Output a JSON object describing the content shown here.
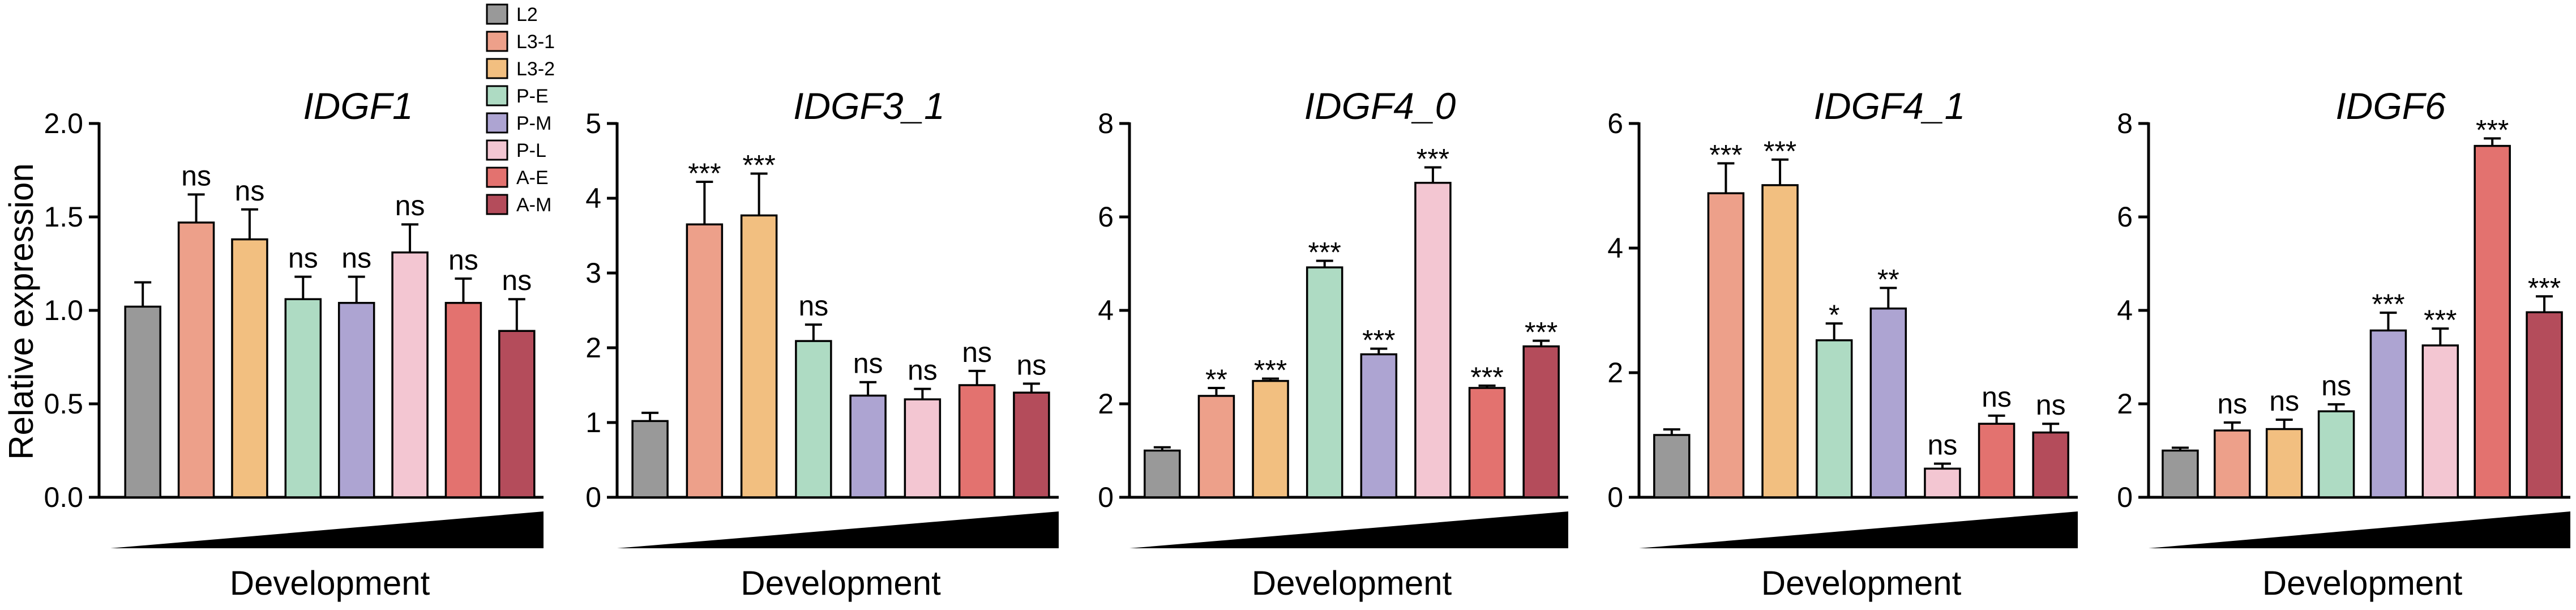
{
  "chart_data": [
    {
      "type": "bar",
      "title": "IDGF1",
      "xlabel": "Development",
      "ylabel": "Relative expression",
      "ylim": [
        0,
        2.0
      ],
      "yticks": [
        "0.0",
        "0.5",
        "1.0",
        "1.5",
        "2.0"
      ],
      "tick_values": [
        0,
        0.5,
        1.0,
        1.5,
        2.0
      ],
      "categories": [
        "L2",
        "L3-1",
        "L3-2",
        "P-E",
        "P-M",
        "P-L",
        "A-E",
        "A-M"
      ],
      "values": [
        1.02,
        1.47,
        1.38,
        1.06,
        1.04,
        1.31,
        1.04,
        0.89
      ],
      "errors": [
        0.13,
        0.15,
        0.16,
        0.12,
        0.14,
        0.15,
        0.13,
        0.17
      ],
      "significance": [
        "",
        "ns",
        "ns",
        "ns",
        "ns",
        "ns",
        "ns",
        "ns"
      ]
    },
    {
      "type": "bar",
      "title": "IDGF3_1",
      "xlabel": "Development",
      "ylabel": "",
      "ylim": [
        0,
        5
      ],
      "yticks": [
        "0",
        "1",
        "2",
        "3",
        "4",
        "5"
      ],
      "tick_values": [
        0,
        1,
        2,
        3,
        4,
        5
      ],
      "categories": [
        "L2",
        "L3-1",
        "L3-2",
        "P-E",
        "P-M",
        "P-L",
        "A-E",
        "A-M"
      ],
      "values": [
        1.02,
        3.65,
        3.77,
        2.09,
        1.36,
        1.31,
        1.5,
        1.4
      ],
      "errors": [
        0.11,
        0.57,
        0.56,
        0.22,
        0.18,
        0.14,
        0.19,
        0.12
      ],
      "significance": [
        "",
        "***",
        "***",
        "ns",
        "ns",
        "ns",
        "ns",
        "ns"
      ]
    },
    {
      "type": "bar",
      "title": "IDGF4_0",
      "xlabel": "Development",
      "ylabel": "",
      "ylim": [
        0,
        8
      ],
      "yticks": [
        "0",
        "2",
        "4",
        "6",
        "8"
      ],
      "tick_values": [
        0,
        2,
        4,
        6,
        8
      ],
      "categories": [
        "L2",
        "L3-1",
        "L3-2",
        "P-E",
        "P-M",
        "P-L",
        "A-E",
        "A-M"
      ],
      "values": [
        1.0,
        2.17,
        2.49,
        4.92,
        3.06,
        6.73,
        2.34,
        3.23
      ],
      "errors": [
        0.07,
        0.17,
        0.05,
        0.14,
        0.12,
        0.33,
        0.05,
        0.12
      ],
      "significance": [
        "",
        "**",
        "***",
        "***",
        "***",
        "***",
        "***",
        "***"
      ]
    },
    {
      "type": "bar",
      "title": "IDGF4_1",
      "xlabel": "Development",
      "ylabel": "",
      "ylim": [
        0,
        6
      ],
      "yticks": [
        "0",
        "2",
        "4",
        "6"
      ],
      "tick_values": [
        0,
        2,
        4,
        6
      ],
      "categories": [
        "L2",
        "L3-1",
        "L3-2",
        "P-E",
        "P-M",
        "P-L",
        "A-E",
        "A-M"
      ],
      "values": [
        1.0,
        4.88,
        5.01,
        2.52,
        3.03,
        0.46,
        1.18,
        1.04
      ],
      "errors": [
        0.09,
        0.48,
        0.41,
        0.27,
        0.33,
        0.08,
        0.13,
        0.14
      ],
      "significance": [
        "",
        "***",
        "***",
        "*",
        "**",
        "ns",
        "ns",
        "ns"
      ]
    },
    {
      "type": "bar",
      "title": "IDGF6",
      "xlabel": "Development",
      "ylabel": "",
      "ylim": [
        0,
        8
      ],
      "yticks": [
        "0",
        "2",
        "4",
        "6",
        "8"
      ],
      "tick_values": [
        0,
        2,
        4,
        6,
        8
      ],
      "categories": [
        "L2",
        "L3-1",
        "L3-2",
        "P-E",
        "P-M",
        "P-L",
        "A-E",
        "A-M"
      ],
      "values": [
        1.0,
        1.43,
        1.46,
        1.84,
        3.57,
        3.25,
        7.52,
        3.96
      ],
      "errors": [
        0.06,
        0.17,
        0.2,
        0.15,
        0.38,
        0.36,
        0.16,
        0.34
      ],
      "significance": [
        "",
        "ns",
        "ns",
        "ns",
        "***",
        "***",
        "***",
        "***"
      ]
    }
  ],
  "legend": [
    {
      "label": "L2",
      "color": "#999999"
    },
    {
      "label": "L3-1",
      "color": "#EDA08A"
    },
    {
      "label": "L3-2",
      "color": "#F2BF80"
    },
    {
      "label": "P-E",
      "color": "#AEDBC3"
    },
    {
      "label": "P-M",
      "color": "#ADA4D2"
    },
    {
      "label": "P-L",
      "color": "#F3C6D2"
    },
    {
      "label": "A-E",
      "color": "#E3726F"
    },
    {
      "label": "A-M",
      "color": "#B44C5B"
    }
  ]
}
